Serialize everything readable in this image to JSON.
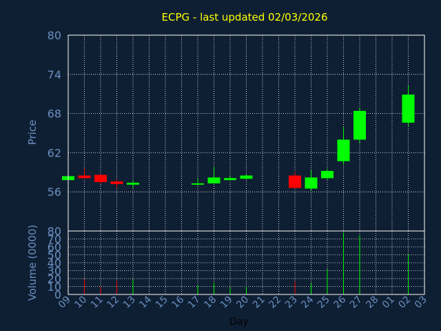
{
  "colors": {
    "background": "#0f1f33",
    "plot_bg": "#0f1f33",
    "axis_text": "#6b8fc0",
    "title": "#ffff00",
    "grid": "#ffffff",
    "up": "#00ff00",
    "down": "#ff0000",
    "frame": "#ffffff"
  },
  "chart_data": [
    {
      "type": "candlestick",
      "title": "ECPG - last updated 02/03/2026",
      "ylabel": "Price",
      "ylim": [
        50,
        80
      ],
      "yticks": [
        "56",
        "62",
        "68",
        "74",
        "80"
      ],
      "ytick_values": [
        56,
        62,
        68,
        74,
        80
      ],
      "grid": true,
      "candles": [
        {
          "x": "09",
          "open": 57.8,
          "high": 58.6,
          "low": 57.5,
          "close": 58.4,
          "dir": "up"
        },
        {
          "x": "10",
          "open": 58.5,
          "high": 59.6,
          "low": 58.0,
          "close": 58.1,
          "dir": "down"
        },
        {
          "x": "11",
          "open": 58.6,
          "high": 58.7,
          "low": 57.2,
          "close": 57.5,
          "dir": "down"
        },
        {
          "x": "12",
          "open": 57.6,
          "high": 57.9,
          "low": 56.6,
          "close": 57.2,
          "dir": "down"
        },
        {
          "x": "13",
          "open": 57.1,
          "high": 57.8,
          "low": 56.6,
          "close": 57.4,
          "dir": "up"
        },
        {
          "x": "17",
          "open": 57.1,
          "high": 58.1,
          "low": 57.0,
          "close": 57.3,
          "dir": "up"
        },
        {
          "x": "18",
          "open": 57.3,
          "high": 59.8,
          "low": 57.3,
          "close": 58.2,
          "dir": "up"
        },
        {
          "x": "19",
          "open": 57.8,
          "high": 58.5,
          "low": 57.7,
          "close": 58.1,
          "dir": "up"
        },
        {
          "x": "20",
          "open": 58.0,
          "high": 58.7,
          "low": 57.9,
          "close": 58.5,
          "dir": "up"
        },
        {
          "x": "23",
          "open": 58.5,
          "high": 59.1,
          "low": 56.5,
          "close": 56.6,
          "dir": "down"
        },
        {
          "x": "24",
          "open": 56.5,
          "high": 59.3,
          "low": 56.2,
          "close": 58.2,
          "dir": "up"
        },
        {
          "x": "25",
          "open": 58.1,
          "high": 59.5,
          "low": 57.9,
          "close": 59.2,
          "dir": "up"
        },
        {
          "x": "26",
          "open": 60.7,
          "high": 65.9,
          "low": 60.2,
          "close": 64.0,
          "dir": "up"
        },
        {
          "x": "27",
          "open": 64.0,
          "high": 68.9,
          "low": 63.5,
          "close": 68.4,
          "dir": "up"
        },
        {
          "x": "02",
          "open": 66.6,
          "high": 72.3,
          "low": 66.0,
          "close": 70.9,
          "dir": "up"
        }
      ]
    },
    {
      "type": "bar",
      "ylabel": "Volume (0000)",
      "xlabel": "Day",
      "ylim": [
        0,
        80
      ],
      "yticks": [
        "0",
        "10",
        "20",
        "30",
        "40",
        "50",
        "60",
        "70",
        "80"
      ],
      "ytick_values": [
        0,
        10,
        20,
        30,
        40,
        50,
        60,
        70,
        80
      ],
      "categories": [
        "09",
        "10",
        "11",
        "12",
        "13",
        "14",
        "15",
        "16",
        "17",
        "18",
        "19",
        "20",
        "21",
        "22",
        "23",
        "24",
        "25",
        "26",
        "27",
        "28",
        "01",
        "02",
        "03"
      ],
      "bars": [
        {
          "x": "10",
          "value": 19,
          "dir": "down"
        },
        {
          "x": "11",
          "value": 10,
          "dir": "down"
        },
        {
          "x": "12",
          "value": 17,
          "dir": "down"
        },
        {
          "x": "13",
          "value": 19,
          "dir": "up"
        },
        {
          "x": "17",
          "value": 12,
          "dir": "up"
        },
        {
          "x": "18",
          "value": 15,
          "dir": "up"
        },
        {
          "x": "19",
          "value": 9,
          "dir": "up"
        },
        {
          "x": "20",
          "value": 10,
          "dir": "up"
        },
        {
          "x": "23",
          "value": 16,
          "dir": "down"
        },
        {
          "x": "24",
          "value": 14,
          "dir": "up"
        },
        {
          "x": "25",
          "value": 32,
          "dir": "up"
        },
        {
          "x": "26",
          "value": 78,
          "dir": "up"
        },
        {
          "x": "27",
          "value": 75,
          "dir": "up"
        },
        {
          "x": "02",
          "value": 51,
          "dir": "up"
        }
      ]
    }
  ]
}
